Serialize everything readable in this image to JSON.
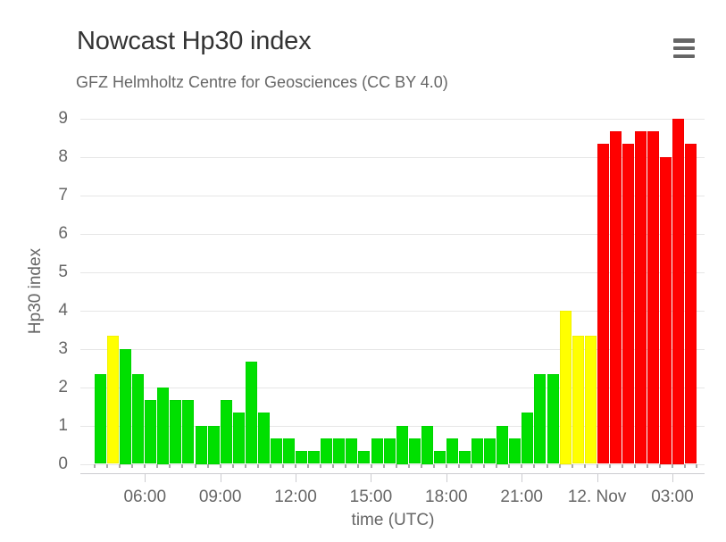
{
  "header": {
    "title": "Nowcast Hp30 index",
    "subtitle": "GFZ Helmholtz Centre for Geosciences (CC BY 4.0)",
    "menu_icon": "hamburger-icon",
    "menu_tooltip": "Chart context menu"
  },
  "chart_data": {
    "type": "bar",
    "title": "Nowcast Hp30 index",
    "subtitle": "GFZ Helmholtz Centre for Geosciences (CC BY 4.0)",
    "ylabel": "Hp30 index",
    "xlabel": "time (UTC)",
    "ylim": [
      0,
      9
    ],
    "yticks": [
      0,
      1,
      2,
      3,
      4,
      5,
      6,
      7,
      8,
      9
    ],
    "grid": true,
    "legend": false,
    "bar_interval_minutes": 30,
    "x_start": "04:00",
    "xticks": [
      {
        "label": "06:00",
        "hours_from_start": 2
      },
      {
        "label": "09:00",
        "hours_from_start": 5
      },
      {
        "label": "12:00",
        "hours_from_start": 8
      },
      {
        "label": "15:00",
        "hours_from_start": 11
      },
      {
        "label": "18:00",
        "hours_from_start": 14
      },
      {
        "label": "21:00",
        "hours_from_start": 17
      },
      {
        "label": "12. Nov",
        "hours_from_start": 20
      },
      {
        "label": "03:00",
        "hours_from_start": 23
      }
    ],
    "colors": {
      "green": "#00e000",
      "yellow": "#ffff00",
      "red": "#ff0000"
    },
    "points": [
      {
        "time": "04:00",
        "value": 2.33,
        "level": "green"
      },
      {
        "time": "04:30",
        "value": 3.33,
        "level": "yellow"
      },
      {
        "time": "05:00",
        "value": 3.0,
        "level": "green"
      },
      {
        "time": "05:30",
        "value": 2.33,
        "level": "green"
      },
      {
        "time": "06:00",
        "value": 1.67,
        "level": "green"
      },
      {
        "time": "06:30",
        "value": 2.0,
        "level": "green"
      },
      {
        "time": "07:00",
        "value": 1.67,
        "level": "green"
      },
      {
        "time": "07:30",
        "value": 1.67,
        "level": "green"
      },
      {
        "time": "08:00",
        "value": 1.0,
        "level": "green"
      },
      {
        "time": "08:30",
        "value": 1.0,
        "level": "green"
      },
      {
        "time": "09:00",
        "value": 1.67,
        "level": "green"
      },
      {
        "time": "09:30",
        "value": 1.33,
        "level": "green"
      },
      {
        "time": "10:00",
        "value": 2.67,
        "level": "green"
      },
      {
        "time": "10:30",
        "value": 1.33,
        "level": "green"
      },
      {
        "time": "11:00",
        "value": 0.67,
        "level": "green"
      },
      {
        "time": "11:30",
        "value": 0.67,
        "level": "green"
      },
      {
        "time": "12:00",
        "value": 0.33,
        "level": "green"
      },
      {
        "time": "12:30",
        "value": 0.33,
        "level": "green"
      },
      {
        "time": "13:00",
        "value": 0.67,
        "level": "green"
      },
      {
        "time": "13:30",
        "value": 0.67,
        "level": "green"
      },
      {
        "time": "14:00",
        "value": 0.67,
        "level": "green"
      },
      {
        "time": "14:30",
        "value": 0.33,
        "level": "green"
      },
      {
        "time": "15:00",
        "value": 0.67,
        "level": "green"
      },
      {
        "time": "15:30",
        "value": 0.67,
        "level": "green"
      },
      {
        "time": "16:00",
        "value": 1.0,
        "level": "green"
      },
      {
        "time": "16:30",
        "value": 0.67,
        "level": "green"
      },
      {
        "time": "17:00",
        "value": 1.0,
        "level": "green"
      },
      {
        "time": "17:30",
        "value": 0.33,
        "level": "green"
      },
      {
        "time": "18:00",
        "value": 0.67,
        "level": "green"
      },
      {
        "time": "18:30",
        "value": 0.33,
        "level": "green"
      },
      {
        "time": "19:00",
        "value": 0.67,
        "level": "green"
      },
      {
        "time": "19:30",
        "value": 0.67,
        "level": "green"
      },
      {
        "time": "20:00",
        "value": 1.0,
        "level": "green"
      },
      {
        "time": "20:30",
        "value": 0.67,
        "level": "green"
      },
      {
        "time": "21:00",
        "value": 1.33,
        "level": "green"
      },
      {
        "time": "21:30",
        "value": 2.33,
        "level": "green"
      },
      {
        "time": "22:00",
        "value": 2.33,
        "level": "green"
      },
      {
        "time": "22:30",
        "value": 4.0,
        "level": "yellow"
      },
      {
        "time": "23:00",
        "value": 3.33,
        "level": "yellow"
      },
      {
        "time": "23:30",
        "value": 3.33,
        "level": "yellow"
      },
      {
        "time": "00:00",
        "value": 8.33,
        "level": "red"
      },
      {
        "time": "00:30",
        "value": 8.67,
        "level": "red"
      },
      {
        "time": "01:00",
        "value": 8.33,
        "level": "red"
      },
      {
        "time": "01:30",
        "value": 8.67,
        "level": "red"
      },
      {
        "time": "02:00",
        "value": 8.67,
        "level": "red"
      },
      {
        "time": "02:30",
        "value": 8.0,
        "level": "red"
      },
      {
        "time": "03:00",
        "value": 9.0,
        "level": "red"
      },
      {
        "time": "03:30",
        "value": 8.33,
        "level": "red"
      }
    ]
  }
}
